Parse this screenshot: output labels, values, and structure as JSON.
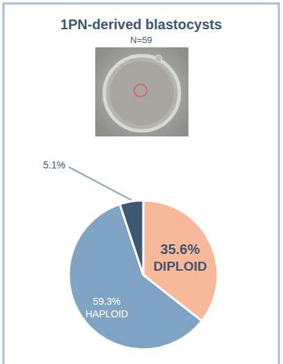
{
  "chart_data": {
    "type": "pie",
    "title": "1PN-derived blastocysts",
    "subtitle": "N=59",
    "categories": [
      "DIPLOID",
      "HAPLOID",
      null
    ],
    "values": [
      35.6,
      59.3,
      5.1
    ],
    "value_labels": [
      "35.6%",
      "59.3%",
      "5.1%"
    ],
    "colors": [
      "#f8b89a",
      "#7fa3c3",
      "#3e5871"
    ],
    "data_labels": true
  }
}
